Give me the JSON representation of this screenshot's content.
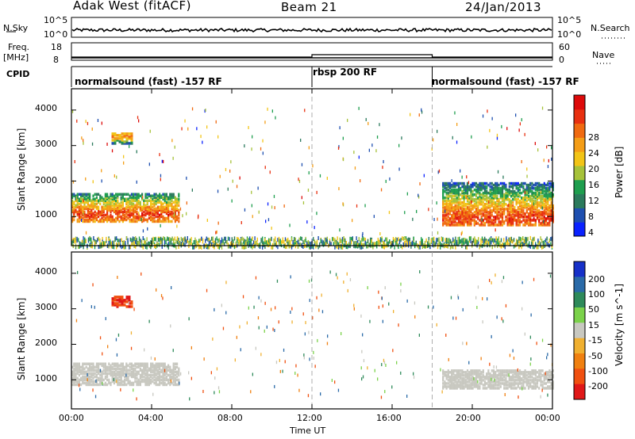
{
  "header": {
    "radar": "Adak West (fitACF)",
    "beam": "Beam 21",
    "date": "24/Jan/2013"
  },
  "strips": {
    "nsky_label": "N.Sky",
    "nsky_ticks": [
      "10^5",
      "10^0"
    ],
    "nsearch_label": "N.Search",
    "nsearch_ticks": [
      "10^5",
      "10^0"
    ],
    "freq_label": "Freq.",
    "freq_unit": "[MHz]",
    "freq_ticks": [
      "18",
      "8"
    ],
    "nave_label": "Nave",
    "nave_ticks": [
      "60",
      "0"
    ],
    "cpid_label": "CPID",
    "modes": [
      {
        "label": "normalsound (fast) -157 RF",
        "start_h": 0,
        "end_h": 12
      },
      {
        "label": "rbsp 200 RF",
        "start_h": 12,
        "end_h": 18
      },
      {
        "label": "normalsound (fast) -157 RF",
        "start_h": 18,
        "end_h": 24
      }
    ]
  },
  "chart_data": [
    {
      "type": "heatmap",
      "parameter": "Power",
      "ylabel": "Slant Range [km]",
      "xlabel": "Time UT",
      "x_ticks": [
        "00:00",
        "04:00",
        "08:00",
        "12:00",
        "16:00",
        "20:00",
        "00:00"
      ],
      "y_ticks": [
        "1000",
        "2000",
        "3000",
        "4000"
      ],
      "ylim": [
        180,
        4600
      ],
      "xlim_hours": [
        0,
        24
      ],
      "colorbar": {
        "label": "Power [dB]",
        "ticks": [
          "4",
          "8",
          "12",
          "16",
          "20",
          "24",
          "28"
        ],
        "range": [
          0,
          30
        ],
        "colors": [
          "#0a22ff",
          "#1e4fb0",
          "#2b7a5c",
          "#1e9e4e",
          "#a6c23a",
          "#f2c416",
          "#f49d16",
          "#f06a10",
          "#e83010",
          "#dd0a0a"
        ]
      },
      "features": [
        {
          "name": "main-band",
          "start_h": 0,
          "end_h": 5.4,
          "range_km": [
            900,
            1700
          ],
          "peak_db": 26
        },
        {
          "name": "main-band",
          "start_h": 18.5,
          "end_h": 24,
          "range_km": [
            800,
            2000
          ],
          "peak_db": 26
        },
        {
          "name": "patch",
          "start_h": 2.0,
          "end_h": 3.0,
          "range_km": [
            3100,
            3400
          ],
          "peak_db": 22
        },
        {
          "name": "near-range",
          "start_h": 0,
          "end_h": 24,
          "range_km": [
            180,
            450
          ],
          "peak_db": 16
        }
      ]
    },
    {
      "type": "heatmap",
      "parameter": "Velocity",
      "ylabel": "Slant Range [km]",
      "xlabel": "Time UT",
      "x_ticks": [
        "00:00",
        "04:00",
        "08:00",
        "12:00",
        "16:00",
        "20:00",
        "00:00"
      ],
      "y_ticks": [
        "1000",
        "2000",
        "3000",
        "4000"
      ],
      "ylim": [
        180,
        4600
      ],
      "xlim_hours": [
        0,
        24
      ],
      "colorbar": {
        "label": "Velocity [m s^-1]",
        "ticks": [
          "200",
          "100",
          "50",
          "15",
          "-15",
          "-50",
          "-100",
          "-200"
        ],
        "colors": [
          "#1630c8",
          "#2a6aa8",
          "#2e8a5a",
          "#7bd24a",
          "#c8c8c0",
          "#f0b030",
          "#f08010",
          "#f05010",
          "#e01818"
        ]
      },
      "features": [
        {
          "name": "ground-scatter",
          "start_h": 0,
          "end_h": 5.4,
          "range_km": [
            900,
            1500
          ],
          "velocity": 0
        },
        {
          "name": "ground-scatter",
          "start_h": 18.5,
          "end_h": 24,
          "range_km": [
            800,
            1300
          ],
          "velocity": 0
        },
        {
          "name": "patch",
          "start_h": 2.0,
          "end_h": 3.0,
          "range_km": [
            3100,
            3400
          ],
          "velocity": -200
        }
      ]
    }
  ]
}
